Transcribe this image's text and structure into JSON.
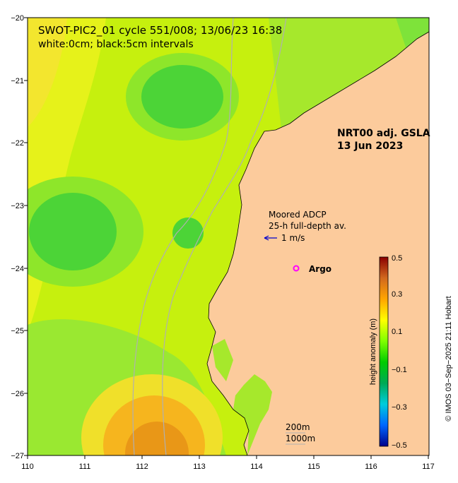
{
  "title": {
    "line1": "SWOT-PIC2_01 cycle 551/008; 13/06/23 16:38",
    "line2": "white:0cm; black:5cm intervals"
  },
  "product": {
    "line1": "NRT00 adj. GSLA",
    "line2": "13 Jun 2023"
  },
  "adcp": {
    "line1": "Moored ADCP",
    "line2": "25-h full-depth av.",
    "scale_label": "1 m/s"
  },
  "argo": {
    "label": "Argo",
    "color": "#ff00ff"
  },
  "isobaths": {
    "label1": "200m",
    "label2": "1000m"
  },
  "colorbar": {
    "label": "height anomaly (m)",
    "ticks": [
      "0.5",
      "0.3",
      "0.1",
      "−0.1",
      "−0.3",
      "−0.5"
    ],
    "stops": [
      "#8b0000",
      "#d2691e",
      "#ffa500",
      "#ffff00",
      "#7fff00",
      "#00cc00",
      "#00aa55",
      "#00ccdd",
      "#0066ff",
      "#00008b"
    ]
  },
  "credit": "© IMOS 03−Sep−2025 21:11 Hobart",
  "axes": {
    "x_ticks": [
      "110",
      "111",
      "112",
      "113",
      "114",
      "115",
      "116",
      "117"
    ],
    "y_ticks": [
      "−20",
      "−21",
      "−22",
      "−23",
      "−24",
      "−25",
      "−26",
      "−27"
    ]
  },
  "colors": {
    "land": "#fccb9c",
    "isobath": "#b0b0b0"
  }
}
